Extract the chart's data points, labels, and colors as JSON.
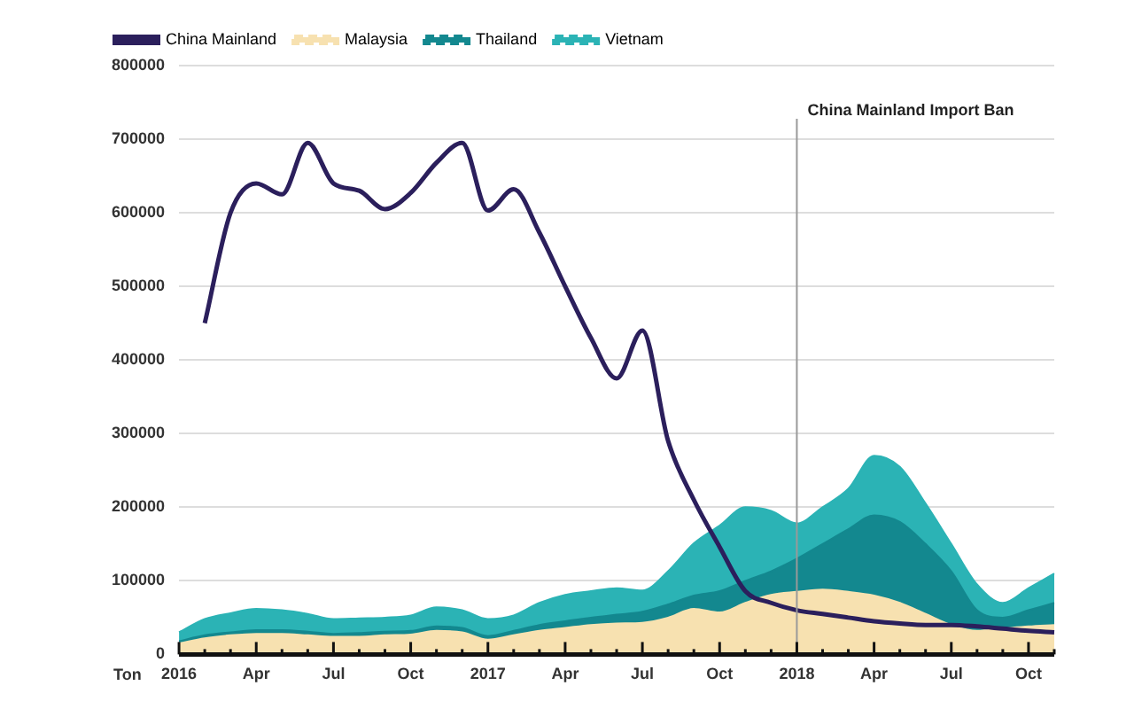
{
  "chart_data": {
    "type": "line",
    "ylabel": "Ton",
    "categories": [
      "2016",
      null,
      null,
      "Apr",
      null,
      null,
      "Jul",
      null,
      null,
      "Oct",
      null,
      null,
      "2017",
      null,
      null,
      "Apr",
      null,
      null,
      "Jul",
      null,
      null,
      "Oct",
      null,
      null,
      "2018",
      null,
      null,
      "Apr",
      null,
      null,
      "Jul",
      null,
      null,
      "Oct",
      null
    ],
    "stacked": true,
    "series": [
      {
        "name": "China Mainland",
        "color": "#2b1f5c",
        "line_style": "solid",
        "values": [
          null,
          450000,
          600000,
          640000,
          625000,
          695000,
          640000,
          630000,
          605000,
          627000,
          668000,
          695000,
          603000,
          632000,
          573000,
          500000,
          430000,
          375000,
          440000,
          290000,
          210000,
          146000,
          86000,
          70000,
          60000,
          55000,
          50000,
          45000,
          42000,
          40000,
          40000,
          38000,
          35000,
          32000,
          30000
        ]
      },
      {
        "name": "Malaysia",
        "type": "area",
        "color": "#f7e1b0",
        "values": [
          15000,
          22000,
          26000,
          28000,
          28000,
          26000,
          24000,
          24000,
          26000,
          27000,
          32000,
          30000,
          20000,
          26000,
          32000,
          36000,
          40000,
          42000,
          43000,
          50000,
          62000,
          57000,
          70000,
          81000,
          85000,
          88000,
          85000,
          80000,
          70000,
          55000,
          40000,
          32000,
          35000,
          38000,
          40000
        ]
      },
      {
        "name": "Thailand",
        "type": "area",
        "color": "#13888f",
        "values": [
          3000,
          4000,
          4000,
          5000,
          5000,
          5000,
          4000,
          5000,
          5000,
          5000,
          6000,
          6000,
          5000,
          6000,
          8000,
          9000,
          10000,
          12000,
          15000,
          18000,
          18000,
          29000,
          30000,
          32000,
          45000,
          62000,
          85000,
          109000,
          110000,
          95000,
          73000,
          28000,
          15000,
          22000,
          30000
        ]
      },
      {
        "name": "Vietnam",
        "type": "area",
        "color": "#2bb3b5",
        "values": [
          12000,
          22000,
          26000,
          29000,
          27000,
          24000,
          20000,
          20000,
          19000,
          21000,
          26000,
          24000,
          23000,
          21000,
          30000,
          36000,
          36000,
          36000,
          29000,
          45000,
          71000,
          89000,
          100000,
          82000,
          48000,
          50000,
          55000,
          81000,
          75000,
          55000,
          37000,
          35000,
          20000,
          30000,
          40000
        ]
      }
    ],
    "ylim": [
      0,
      800000
    ],
    "yticks": [
      0,
      100000,
      200000,
      300000,
      400000,
      500000,
      600000,
      700000,
      800000
    ],
    "grid": "y",
    "legend": "top left",
    "marker": "none",
    "ref_lines": [
      {
        "axis": "x",
        "value": "2018",
        "label": "China Mainland Import Ban",
        "color": "#999999"
      }
    ]
  }
}
